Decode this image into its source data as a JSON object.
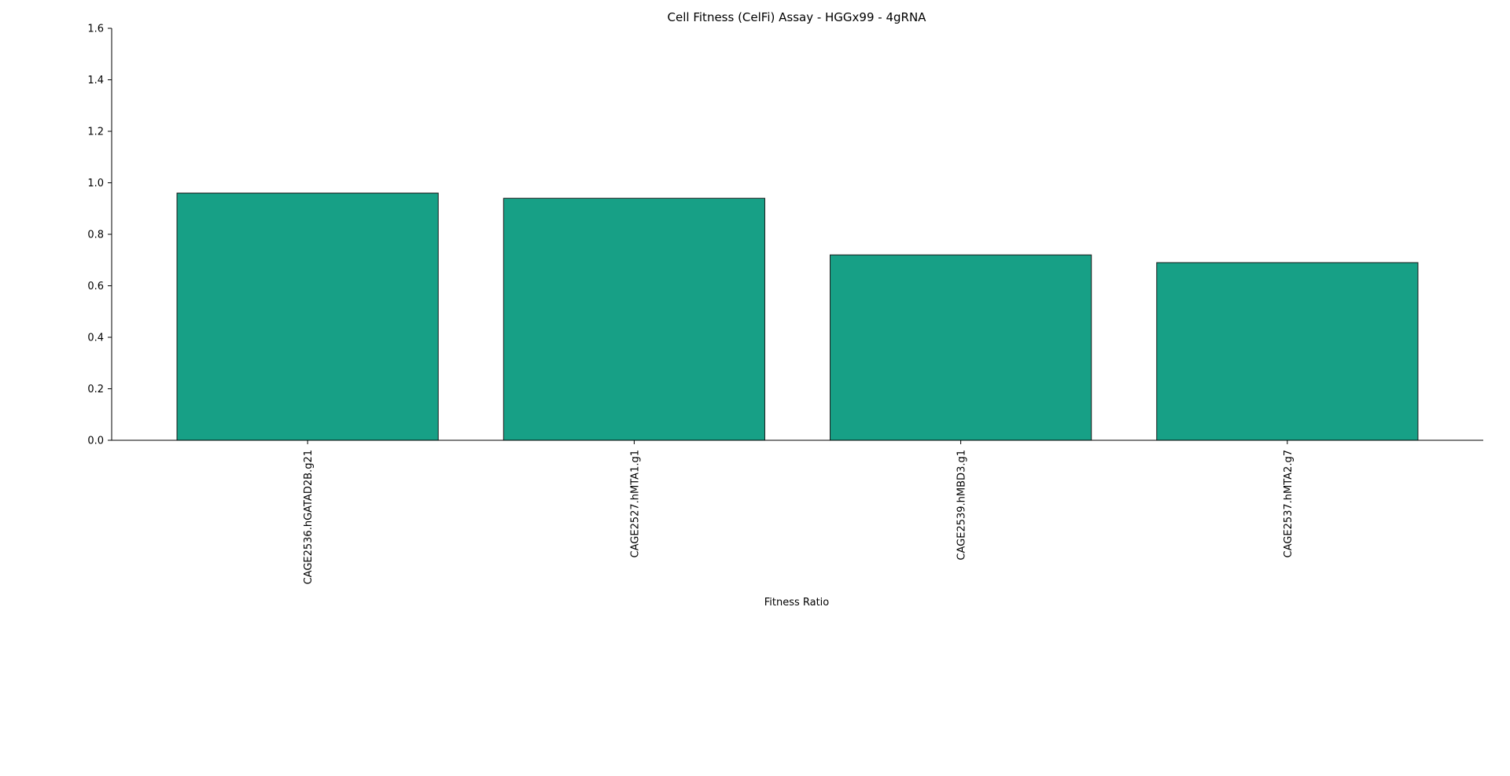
{
  "chart_data": {
    "type": "bar",
    "title": "Cell Fitness (CelFi) Assay - HGGx99 - 4gRNA",
    "xlabel": "Fitness Ratio",
    "ylabel": "",
    "categories": [
      "CAGE2536.hGATAD2B.g21",
      "CAGE2527.hMTA1.g1",
      "CAGE2539.hMBD3.g1",
      "CAGE2537.hMTA2.g7"
    ],
    "values": [
      0.96,
      0.94,
      0.72,
      0.69
    ],
    "ylim": [
      0,
      1.6
    ],
    "yticks": [
      "0.0",
      "0.2",
      "0.4",
      "0.6",
      "0.8",
      "1.0",
      "1.2",
      "1.4",
      "1.6"
    ],
    "grid": false,
    "legend": "none",
    "colors": {
      "bar_fill": "#17a086",
      "bar_edge": "#1a1a1a",
      "axis": "#000000"
    }
  }
}
